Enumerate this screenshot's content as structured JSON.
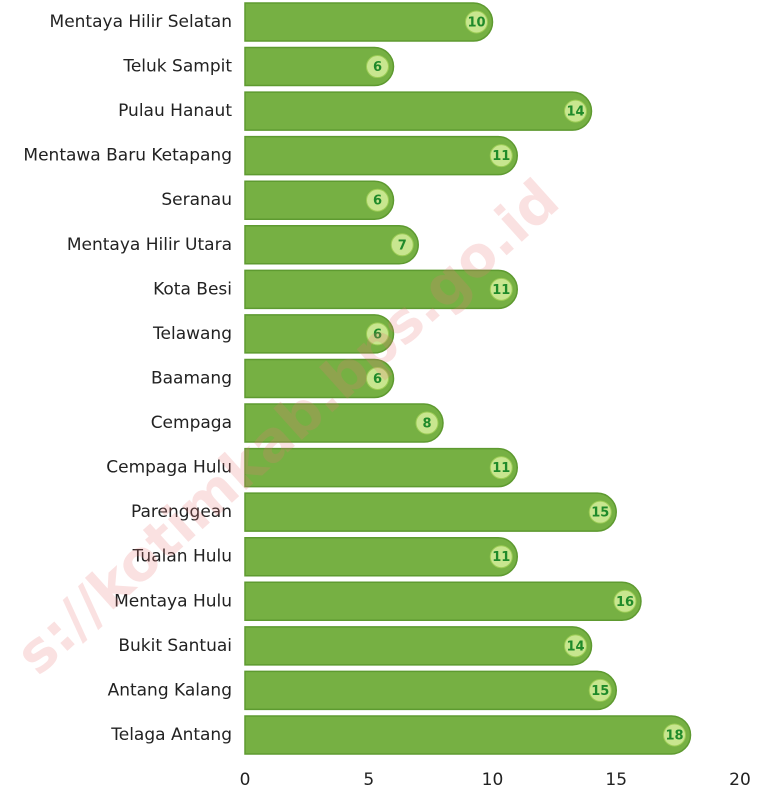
{
  "chart_data": {
    "type": "bar",
    "orientation": "horizontal",
    "categories": [
      "Mentaya Hilir Selatan",
      "Teluk Sampit",
      "Pulau Hanaut",
      "Mentawa Baru Ketapang",
      "Seranau",
      "Mentaya Hilir Utara",
      "Kota Besi",
      "Telawang",
      "Baamang",
      "Cempaga",
      "Cempaga Hulu",
      "Parenggean",
      "Tualan Hulu",
      "Mentaya Hulu",
      "Bukit Santuai",
      "Antang Kalang",
      "Telaga Antang"
    ],
    "values": [
      10,
      6,
      14,
      11,
      6,
      7,
      11,
      6,
      6,
      8,
      11,
      15,
      11,
      16,
      14,
      15,
      18
    ],
    "color": "#76b043",
    "xlim": [
      0,
      20
    ],
    "xticks": [
      0,
      5,
      10,
      15,
      20
    ],
    "grid": false,
    "watermark": "s://kotimkab.bps.go.id"
  }
}
